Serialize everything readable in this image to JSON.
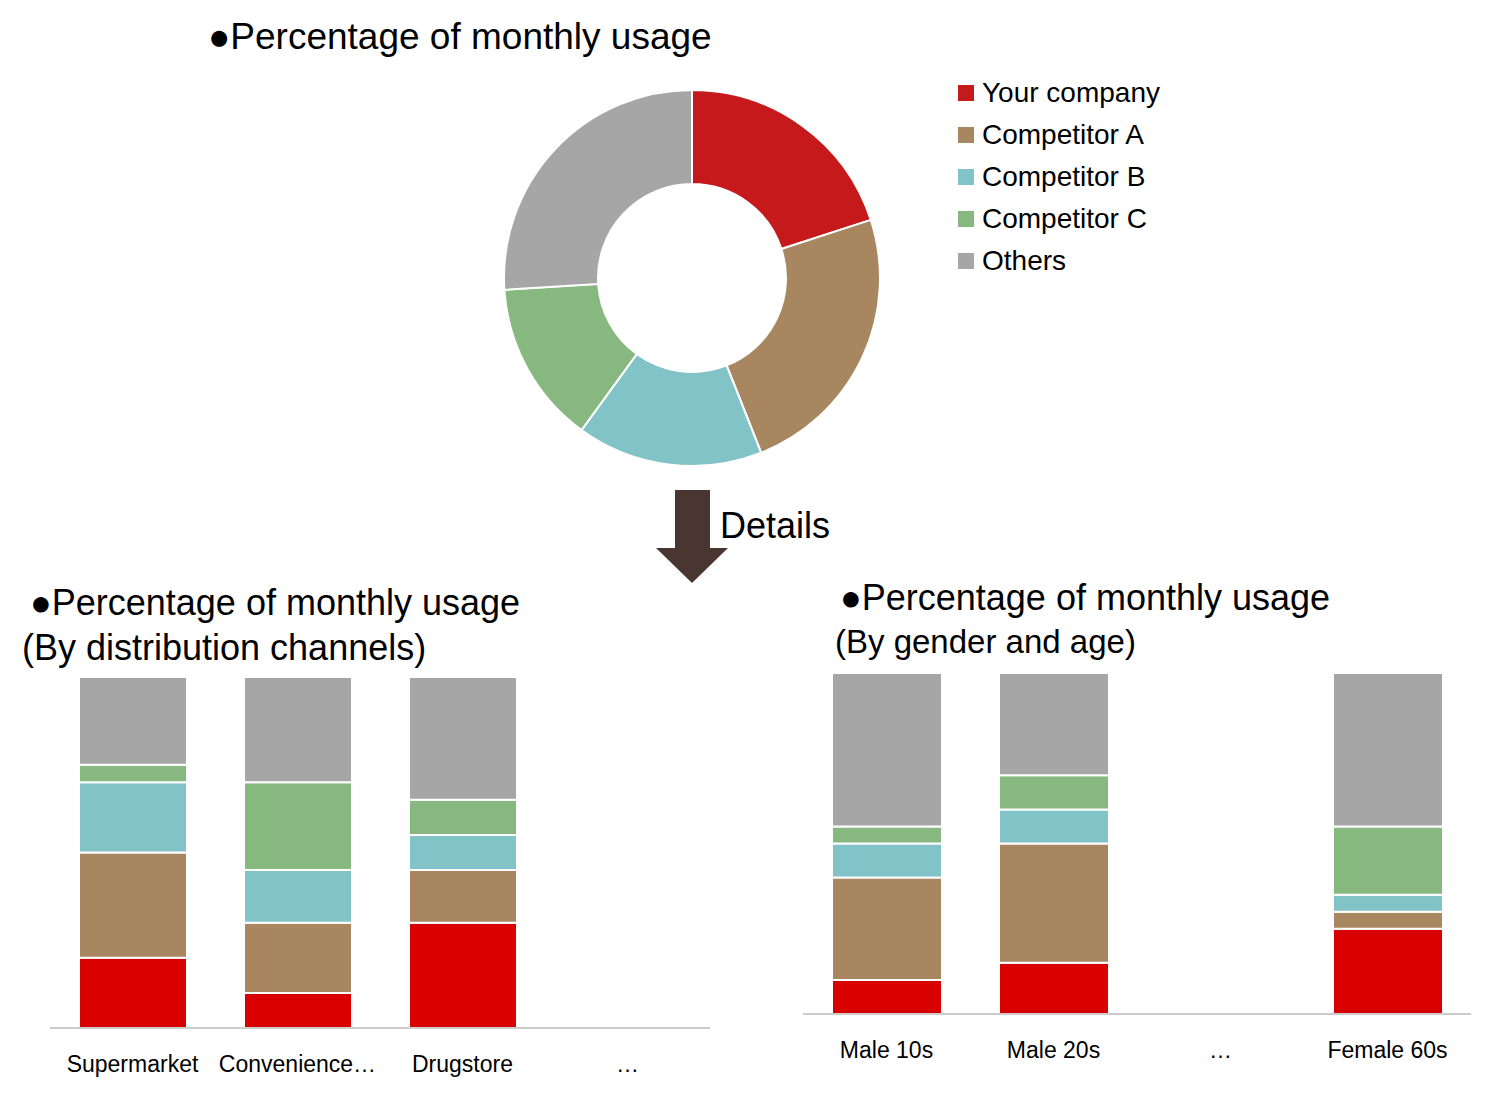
{
  "annotation": "Details",
  "chart_data": [
    {
      "type": "pie",
      "title": "●Percentage of monthly usage",
      "categories": [
        "Your company",
        "Competitor A",
        "Competitor B",
        "Competitor C",
        "Others"
      ],
      "values": [
        20,
        24,
        16,
        14,
        26
      ],
      "colors": [
        "#c5191b",
        "#a88660",
        "#82c3c7",
        "#86b880",
        "#a6a6a6"
      ],
      "legend": "right"
    },
    {
      "type": "bar",
      "stacked": true,
      "title": "●Percentage of monthly usage",
      "subtitle": "(By distribution channels)",
      "categories": [
        "Supermarket",
        "Convenience…",
        "Drugstore",
        "…"
      ],
      "series": [
        {
          "name": "Your company",
          "color": "#d90000",
          "values": [
            20,
            10,
            30,
            null
          ]
        },
        {
          "name": "Competitor A",
          "color": "#a88660",
          "values": [
            30,
            20,
            15,
            null
          ]
        },
        {
          "name": "Competitor B",
          "color": "#82c3c7",
          "values": [
            20,
            15,
            10,
            null
          ]
        },
        {
          "name": "Competitor C",
          "color": "#86b880",
          "values": [
            5,
            25,
            10,
            null
          ]
        },
        {
          "name": "Others",
          "color": "#a6a6a6",
          "values": [
            25,
            30,
            35,
            null
          ]
        }
      ],
      "ylim": [
        0,
        100
      ],
      "tick_labels": "x"
    },
    {
      "type": "bar",
      "stacked": true,
      "title": "●Percentage of monthly usage",
      "subtitle": "(By gender and age)",
      "categories": [
        "Male 10s",
        "Male 20s",
        "…",
        "Female 60s"
      ],
      "series": [
        {
          "name": "Your company",
          "color": "#d90000",
          "values": [
            10,
            15,
            null,
            25
          ]
        },
        {
          "name": "Competitor A",
          "color": "#a88660",
          "values": [
            30,
            35,
            null,
            5
          ]
        },
        {
          "name": "Competitor B",
          "color": "#82c3c7",
          "values": [
            10,
            10,
            null,
            5
          ]
        },
        {
          "name": "Competitor C",
          "color": "#86b880",
          "values": [
            5,
            10,
            null,
            20
          ]
        },
        {
          "name": "Others",
          "color": "#a6a6a6",
          "values": [
            45,
            30,
            null,
            45
          ]
        }
      ],
      "ylim": [
        0,
        100
      ],
      "tick_labels": "x"
    }
  ]
}
